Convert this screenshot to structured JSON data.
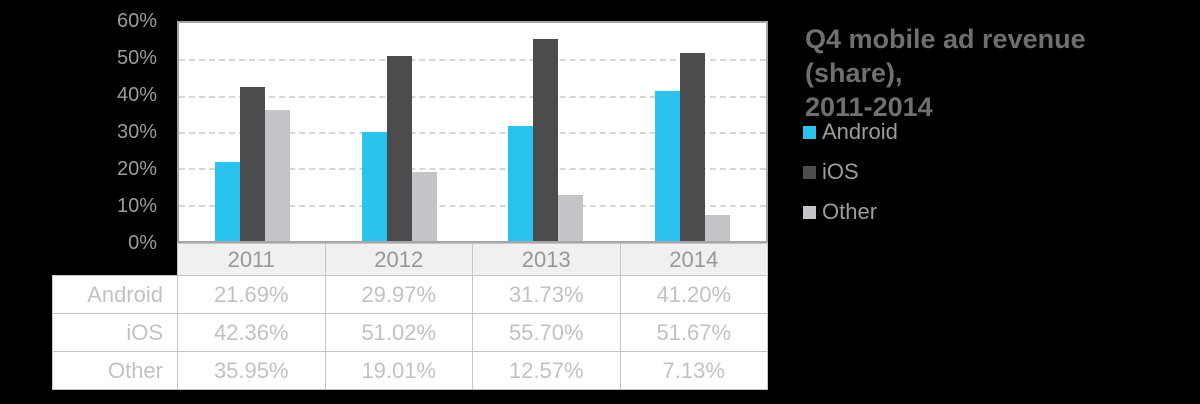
{
  "title": {
    "line1": "Q4 mobile ad revenue (share),",
    "line2": "2011-2014"
  },
  "legend": {
    "items": [
      {
        "label": "Android",
        "color": "#28c3ee"
      },
      {
        "label": "iOS",
        "color": "#4b4c4e"
      },
      {
        "label": "Other",
        "color": "#c3c5c8"
      }
    ]
  },
  "chart_data": {
    "type": "bar",
    "title": "Q4 mobile ad revenue (share), 2011-2014",
    "categories": [
      "2011",
      "2012",
      "2013",
      "2014"
    ],
    "series": [
      {
        "name": "Android",
        "color": "#28c3ee",
        "values": [
          21.69,
          29.97,
          31.73,
          41.2
        ]
      },
      {
        "name": "iOS",
        "color": "#4b4c4e",
        "values": [
          42.36,
          51.02,
          55.7,
          51.67
        ]
      },
      {
        "name": "Other",
        "color": "#c3c5c8",
        "values": [
          35.95,
          19.01,
          12.57,
          7.13
        ]
      }
    ],
    "ylim": [
      0,
      60
    ],
    "ytick_labels": [
      "60%",
      "50%",
      "40%",
      "30%",
      "20%",
      "10%",
      "0%"
    ],
    "gridline_values": [
      50,
      40,
      30,
      20,
      10
    ],
    "grid": "horizontal-dashed",
    "legend_position": "right"
  },
  "table": {
    "column_headers": [
      "2011",
      "2012",
      "2013",
      "2014"
    ],
    "rows": [
      {
        "label": "Android",
        "values": [
          "21.69%",
          "29.97%",
          "31.73%",
          "41.20%"
        ]
      },
      {
        "label": "iOS",
        "values": [
          "42.36%",
          "51.02%",
          "55.70%",
          "51.67%"
        ]
      },
      {
        "label": "Other",
        "values": [
          "35.95%",
          "19.01%",
          "12.57%",
          "7.13%"
        ]
      }
    ]
  },
  "colors": {
    "background": "#000000",
    "plot_background": "#ffffff",
    "plot_border": "#a6a6a6",
    "gridline": "#d6d6d6",
    "table_border": "#c6c6c6",
    "header_background": "#f0f0f0",
    "header_text": "#96989a",
    "cell_text": "#c2c2c2",
    "axis_text": "#9c9c9c",
    "title_text": "#6f6f6f"
  }
}
